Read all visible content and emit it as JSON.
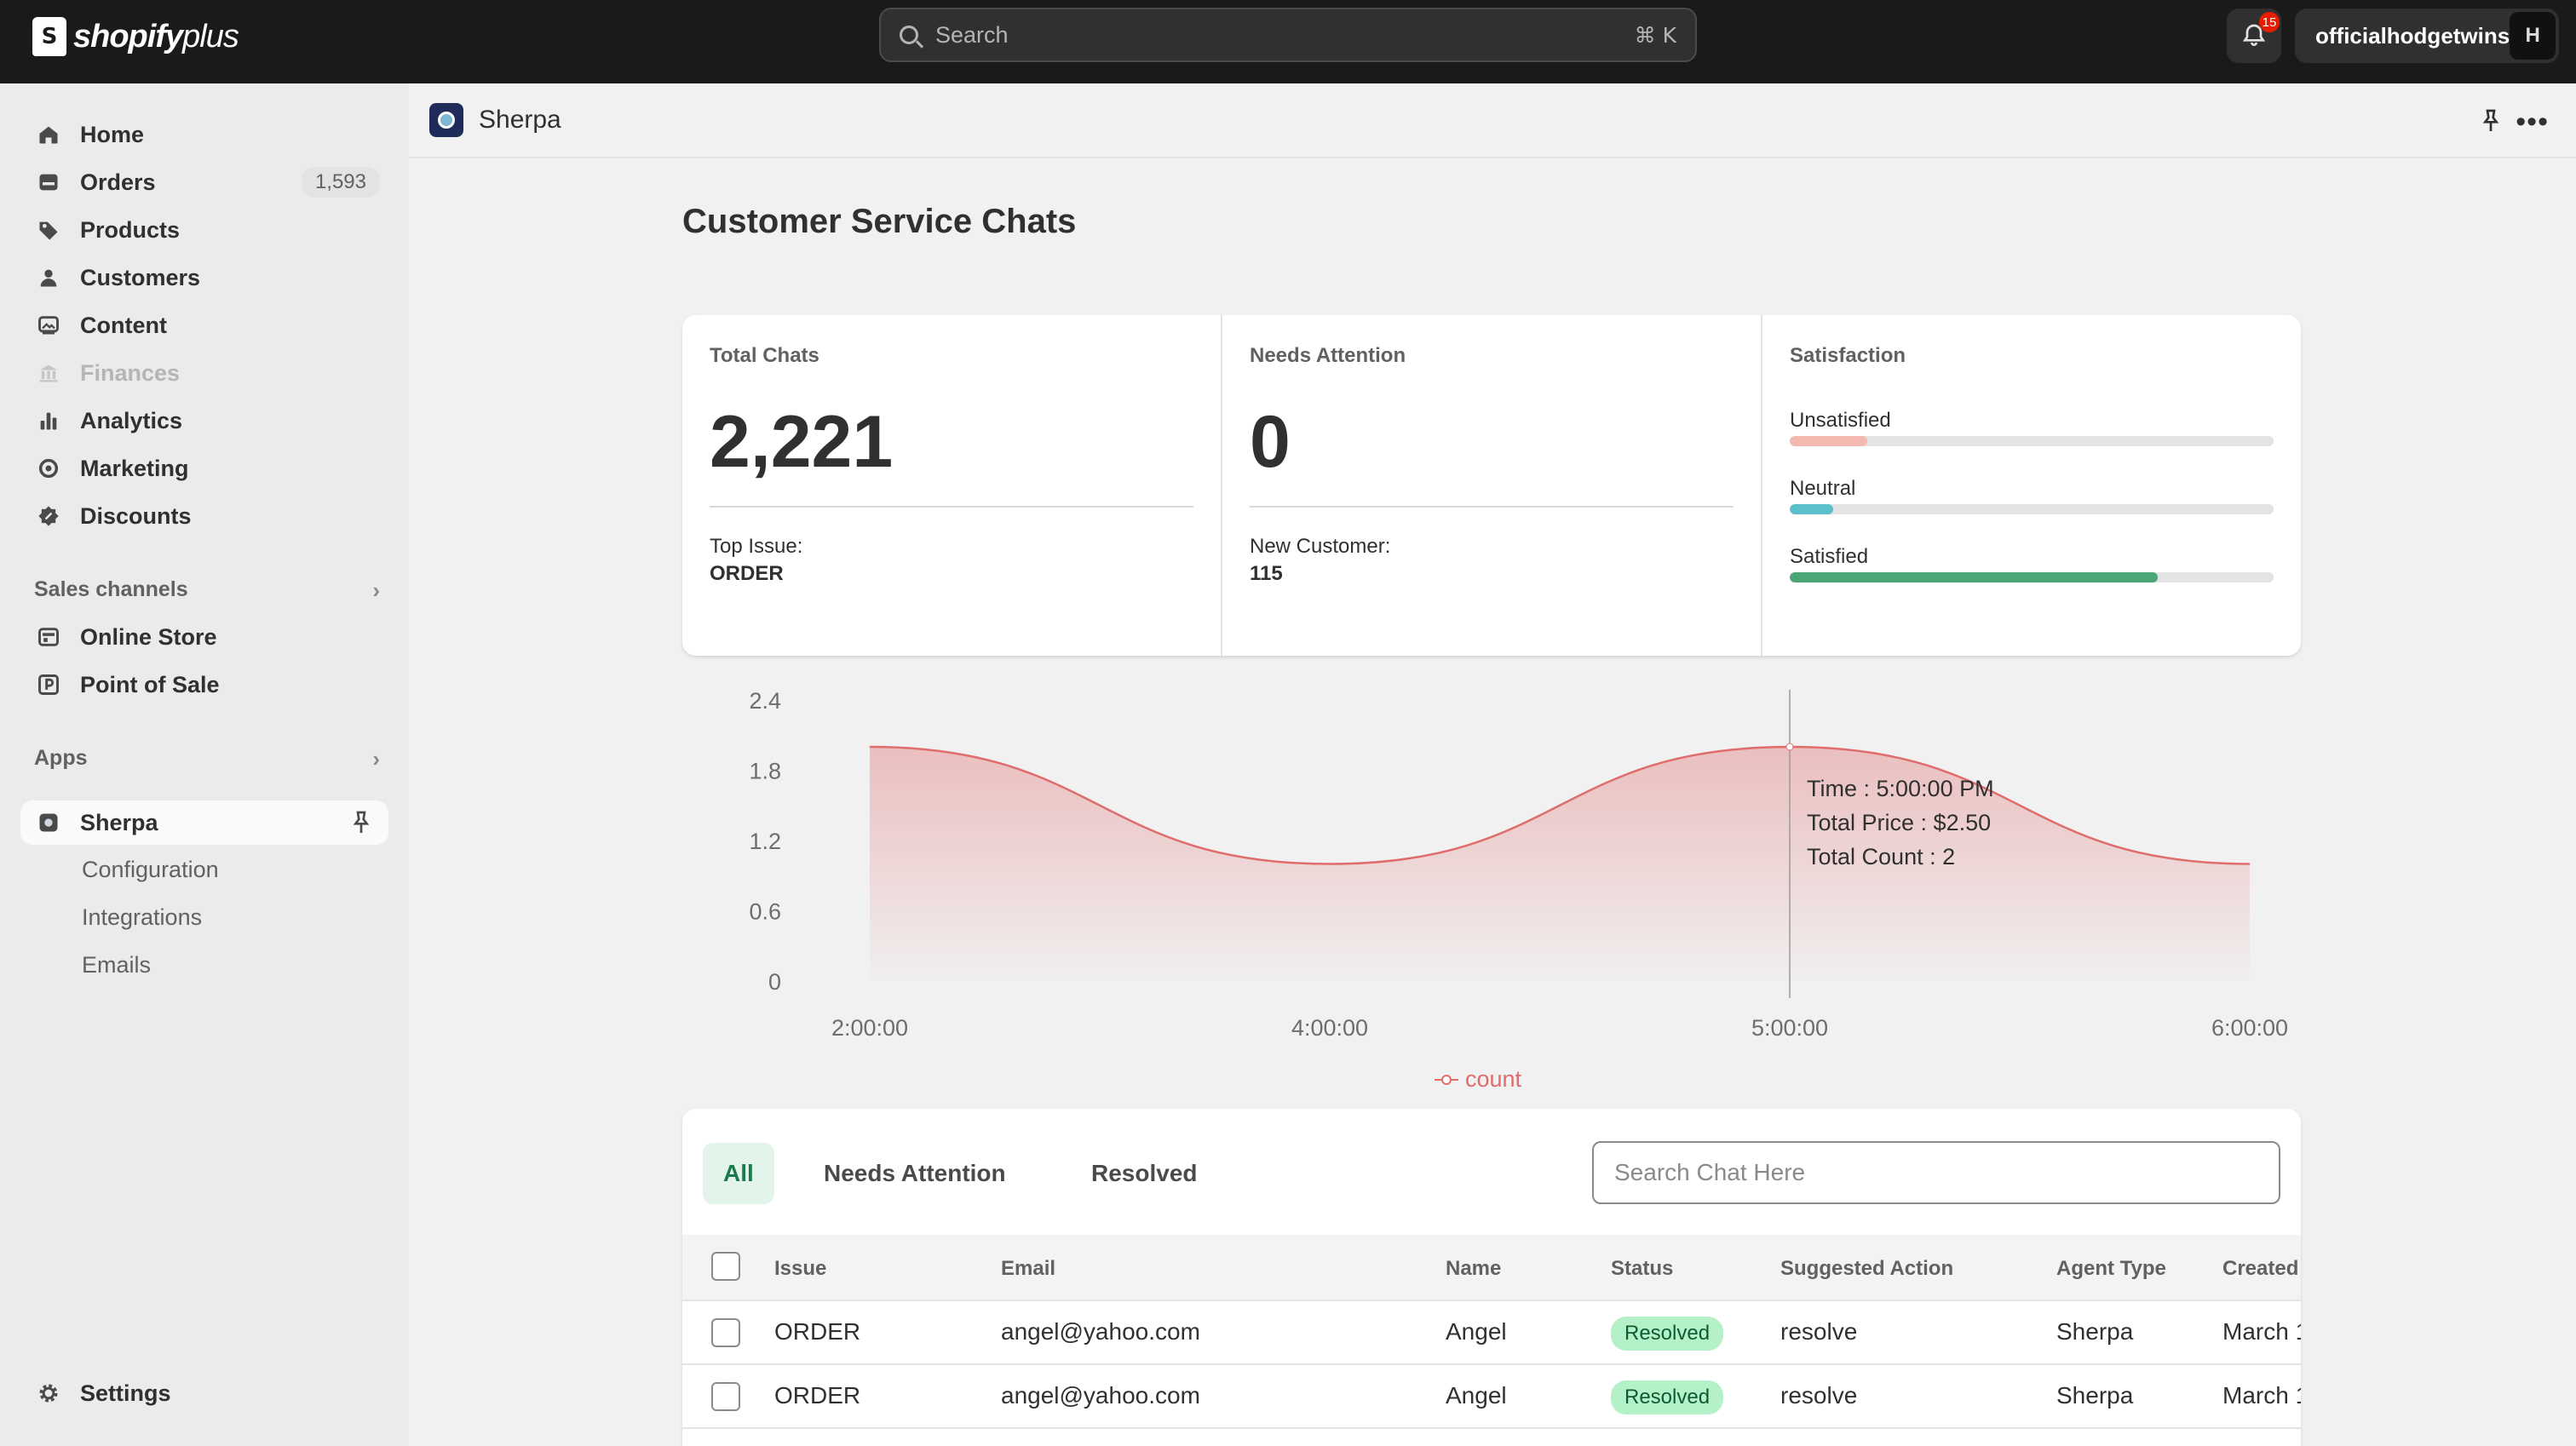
{
  "topbar": {
    "brand": "shopify",
    "brand_suffix": "plus",
    "search_placeholder": "Search",
    "search_shortcut": "⌘ K",
    "notifications_count": "15",
    "account_name": "officialhodgetwins"
  },
  "sidebar": {
    "items": [
      {
        "label": "Home",
        "icon": "home-icon"
      },
      {
        "label": "Orders",
        "icon": "orders-icon",
        "badge": "1,593"
      },
      {
        "label": "Products",
        "icon": "tag-icon"
      },
      {
        "label": "Customers",
        "icon": "person-icon"
      },
      {
        "label": "Content",
        "icon": "image-icon"
      },
      {
        "label": "Finances",
        "icon": "bank-icon",
        "disabled": true
      },
      {
        "label": "Analytics",
        "icon": "chart-bar-icon"
      },
      {
        "label": "Marketing",
        "icon": "target-icon"
      },
      {
        "label": "Discounts",
        "icon": "discount-icon"
      }
    ],
    "sales_channels_label": "Sales channels",
    "sales_channels": [
      {
        "label": "Online Store",
        "icon": "store-icon"
      },
      {
        "label": "Point of Sale",
        "icon": "pos-icon"
      }
    ],
    "apps_label": "Apps",
    "app": {
      "label": "Sherpa"
    },
    "app_sub": [
      "Configuration",
      "Integrations",
      "Emails"
    ],
    "settings_label": "Settings"
  },
  "app_header": {
    "title": "Sherpa"
  },
  "page": {
    "title": "Customer Service Chats"
  },
  "cards": {
    "total": {
      "label": "Total Chats",
      "value": "2,221",
      "sub_label": "Top Issue:",
      "sub_value": "ORDER"
    },
    "attention": {
      "label": "Needs Attention",
      "value": "0",
      "sub_label": "New Customer:",
      "sub_value": "115"
    },
    "satisfaction": {
      "label": "Satisfaction",
      "rows": [
        {
          "label": "Unsatisfied",
          "level": 0.16,
          "color": "#f3b8b0"
        },
        {
          "label": "Neutral",
          "level": 0.09,
          "color": "#5bc0cc"
        },
        {
          "label": "Satisfied",
          "level": 0.76,
          "color": "#4aa675"
        }
      ]
    }
  },
  "chart_data": {
    "type": "area",
    "x": [
      "2:00:00",
      "4:00:00",
      "5:00:00",
      "6:00:00"
    ],
    "y_ticks": [
      "2.4",
      "1.8",
      "1.2",
      "0.6",
      "0"
    ],
    "ylim": [
      0,
      2.4
    ],
    "series": [
      {
        "name": "count",
        "values": [
          2,
          1,
          2,
          1
        ],
        "color": "#e06c6c"
      }
    ],
    "tooltip": {
      "time": "Time : 5:00:00 PM",
      "price": "Total Price : $2.50",
      "count": "Total Count : 2"
    },
    "legend_position": "bottom-center"
  },
  "table": {
    "tabs": [
      "All",
      "Needs Attention",
      "Resolved"
    ],
    "search_placeholder": "Search Chat Here",
    "columns": [
      "Issue",
      "Email",
      "Name",
      "Status",
      "Suggested Action",
      "Agent Type",
      "Created"
    ],
    "rows": [
      {
        "issue": "ORDER",
        "email": "angel@yahoo.com",
        "name": "Angel",
        "status": "Resolved",
        "action": "resolve",
        "agent": "Sherpa",
        "created": "March 1"
      },
      {
        "issue": "ORDER",
        "email": "angel@yahoo.com",
        "name": "Angel",
        "status": "Resolved",
        "action": "resolve",
        "agent": "Sherpa",
        "created": "March 1"
      }
    ]
  }
}
